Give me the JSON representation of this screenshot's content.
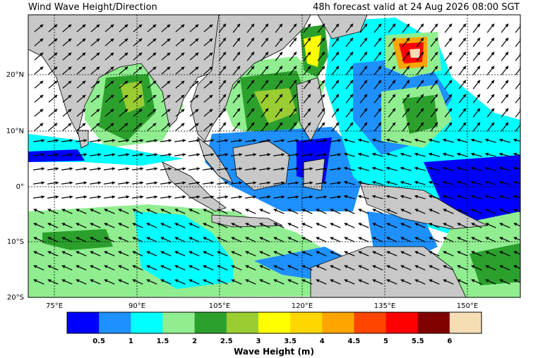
{
  "header": {
    "title": "Wind Wave Height/Direction",
    "valid_time": "48h forecast valid at 24 Aug 2026 08:00 SGT"
  },
  "map": {
    "lat_labels": [
      "20°N",
      "10°N",
      "0°",
      "10°S",
      "20°S"
    ],
    "lon_labels": [
      "75°E",
      "90°E",
      "105°E",
      "120°E",
      "135°E",
      "150°E"
    ],
    "land_color": "#c8c8c8",
    "ocean_default_color": "#ffffff"
  },
  "colorbar": {
    "title": "Wave Height (m)",
    "tick_labels": [
      "0.5",
      "1",
      "1.5",
      "2",
      "2.5",
      "3",
      "3.5",
      "4",
      "4.5",
      "5",
      "5.5",
      "6"
    ],
    "colors": [
      "#0000ff",
      "#1e90ff",
      "#00ffff",
      "#90ee90",
      "#2ca02c",
      "#9acd32",
      "#ffff00",
      "#ffd700",
      "#ffa500",
      "#ff4500",
      "#ff0000",
      "#800000",
      "#f5deb3"
    ]
  }
}
